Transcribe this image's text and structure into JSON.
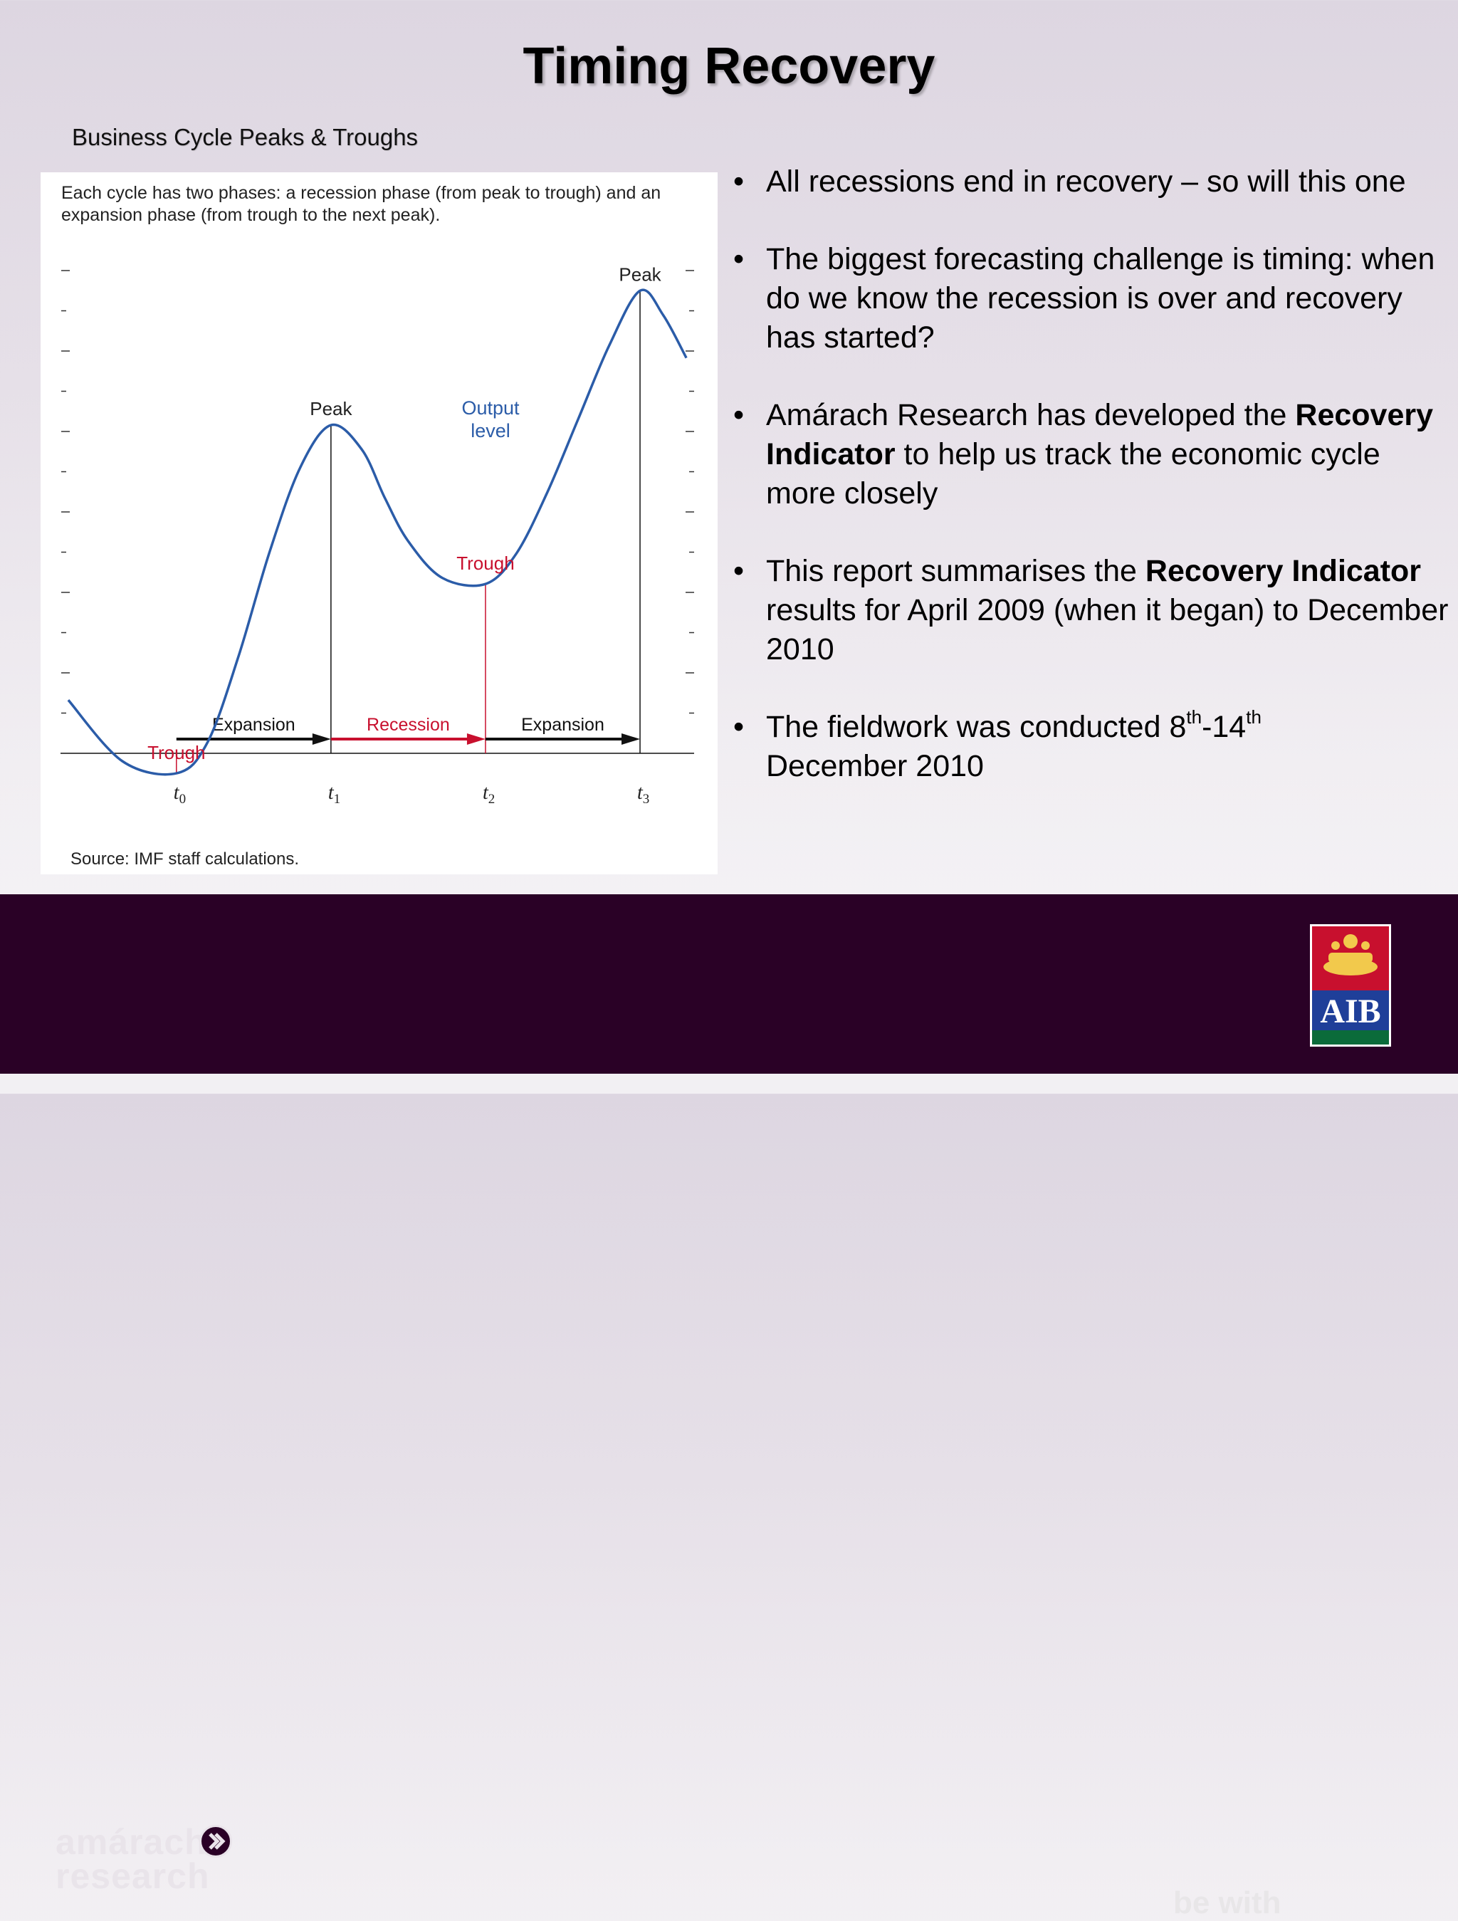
{
  "slide": {
    "title": "Timing Recovery",
    "subtitle": "Business Cycle Peaks & Troughs"
  },
  "bullets": [
    {
      "dot": "•",
      "text": "All recessions end in recovery – so will this one"
    },
    {
      "dot": "•",
      "text": "The biggest forecasting challenge is timing: when do we know the recession is over and recovery has started?"
    },
    {
      "dot": "•",
      "pre": "Amárach Research has developed the ",
      "bold": "Recovery Indicator",
      "post": " to help us track the economic cycle more closely"
    },
    {
      "dot": "•",
      "pre": "This report summarises the ",
      "bold": "Recovery Indicator",
      "post": " results for April 2009 (when it began) to December 2010"
    },
    {
      "dot": "•",
      "pre": "The fieldwork was conducted 8",
      "sup1": "th",
      "mid": "-14",
      "sup2": "th",
      "post": " December 2010"
    }
  ],
  "chart_data": {
    "type": "line",
    "caption_line1": "Each cycle has two phases: a recession phase (from peak to trough) and an",
    "caption_line2": "expansion phase (from trough to the next peak).",
    "source": "Source: IMF staff calculations.",
    "xlim": [
      -0.75,
      3.35
    ],
    "ylim": [
      0,
      1
    ],
    "series": [
      {
        "name": "Output level",
        "label_line1": "Output",
        "label_line2": "level",
        "color": "#2b5ca8",
        "x": [
          -0.7,
          -0.35,
          0.0,
          0.2,
          0.4,
          0.6,
          0.8,
          1.0,
          1.2,
          1.35,
          1.5,
          1.72,
          2.0,
          2.2,
          2.4,
          2.6,
          2.8,
          3.0,
          3.15,
          3.3
        ],
        "y": [
          0.29,
          0.19,
          0.17,
          0.22,
          0.36,
          0.53,
          0.67,
          0.74,
          0.7,
          0.62,
          0.55,
          0.49,
          0.48,
          0.53,
          0.63,
          0.75,
          0.87,
          0.96,
          0.92,
          0.85
        ]
      }
    ],
    "turning_points": [
      {
        "label": "Trough",
        "x": 0,
        "y": 0.17,
        "kind": "trough"
      },
      {
        "label": "Peak",
        "x": 1,
        "y": 0.74,
        "kind": "peak"
      },
      {
        "label": "Trough",
        "x": 2,
        "y": 0.48,
        "kind": "trough"
      },
      {
        "label": "Peak",
        "x": 3,
        "y": 0.96,
        "kind": "peak"
      }
    ],
    "time_labels": [
      {
        "t": "t",
        "sub": "0",
        "x": 0
      },
      {
        "t": "t",
        "sub": "1",
        "x": 1
      },
      {
        "t": "t",
        "sub": "2",
        "x": 2
      },
      {
        "t": "t",
        "sub": "3",
        "x": 3
      }
    ],
    "phases": [
      {
        "label": "Expansion",
        "from": 0,
        "to": 1,
        "color": "#111111"
      },
      {
        "label": "Recession",
        "from": 1,
        "to": 2,
        "color": "#c8102e"
      },
      {
        "label": "Expansion",
        "from": 2,
        "to": 3,
        "color": "#111111"
      }
    ],
    "trough_color": "#c8102e",
    "peak_color": "#111111"
  },
  "footer": {
    "brand_line1": "amárach",
    "brand_line2": "research",
    "tagline": "be with",
    "aib_text": "AIB",
    "colors": {
      "footer_bg": "#2a0126",
      "aib_red": "#c8102e",
      "aib_blue": "#1f3f99",
      "aib_green": "#0b6b3a",
      "aib_gold": "#f2c94c"
    }
  }
}
